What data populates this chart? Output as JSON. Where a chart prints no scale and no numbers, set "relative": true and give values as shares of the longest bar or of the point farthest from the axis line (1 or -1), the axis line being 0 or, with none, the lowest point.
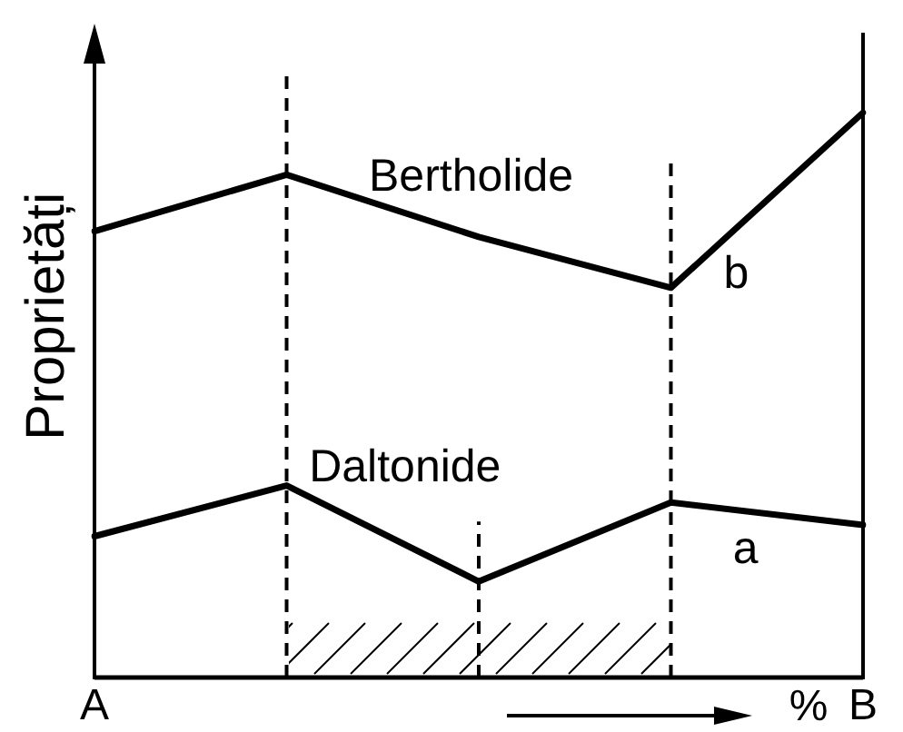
{
  "chart_data": {
    "type": "line",
    "ylabel": "Proprietăți",
    "xlabel": "%",
    "relative": true,
    "categories": [
      "A",
      null,
      null,
      null,
      "B"
    ],
    "tick_labels": "x",
    "grid": "x",
    "series": [
      {
        "name": "Bertholide",
        "color": "#000000",
        "values": [
          0.79,
          0.89,
          0.78,
          0.69,
          1
        ]
      },
      {
        "name": "Daltonide",
        "color": "#000000",
        "values": [
          0.25,
          0.34,
          0.17,
          0.31,
          0.27
        ]
      }
    ],
    "annotations": [
      "b",
      "a"
    ]
  }
}
